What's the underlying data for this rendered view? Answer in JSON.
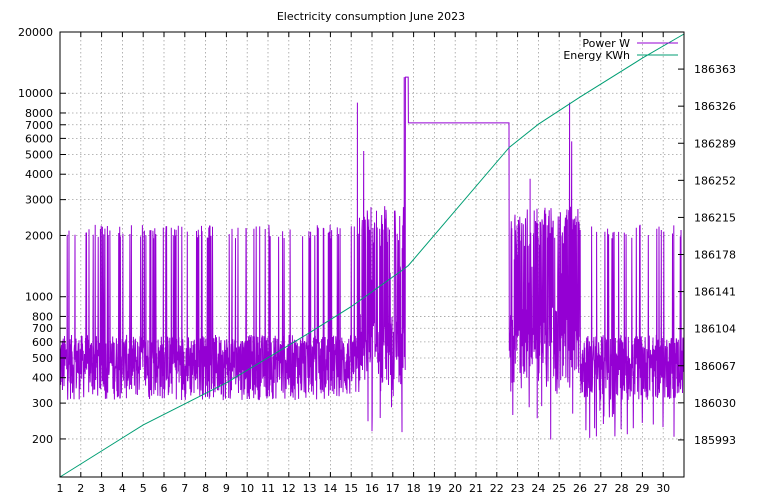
{
  "chart_data": {
    "type": "line",
    "title": "Electricity consumption June 2023",
    "xlabel": "",
    "ylabel_left": "",
    "ylabel_right": "",
    "x_range": [
      1,
      31
    ],
    "x_ticks": [
      "1",
      "2",
      "3",
      "4",
      "5",
      "6",
      "7",
      "8",
      "9",
      "10",
      "11",
      "12",
      "13",
      "14",
      "15",
      "16",
      "17",
      "18",
      "19",
      "20",
      "21",
      "22",
      "23",
      "24",
      "25",
      "26",
      "27",
      "28",
      "29",
      "30"
    ],
    "y_left": {
      "scale": "log",
      "range": [
        130,
        20000
      ],
      "ticks": [
        200,
        300,
        400,
        500,
        600,
        700,
        800,
        1000,
        2000,
        3000,
        4000,
        5000,
        6000,
        7000,
        8000,
        10000,
        20000
      ],
      "tick_labels": [
        "200",
        "300",
        "400",
        "500",
        "600",
        "700",
        "800",
        "1000",
        "2000",
        "3000",
        "4000",
        "5000",
        "6000",
        "7000",
        "8000",
        "10000",
        "20000"
      ]
    },
    "y_right": {
      "scale": "linear",
      "range": [
        185956,
        186400
      ],
      "ticks": [
        185993,
        186030,
        186067,
        186104,
        186141,
        186178,
        186215,
        186252,
        186289,
        186326,
        186363
      ],
      "tick_labels": [
        "185993",
        "186030",
        "186067",
        "186104",
        "186141",
        "186178",
        "186215",
        "186252",
        "186289",
        "186326",
        "186363"
      ]
    },
    "grid": true,
    "legend_position": "top-right",
    "series": [
      {
        "name": "Power W",
        "axis": "left",
        "color": "#9400d3",
        "baseline_low": 310,
        "baseline_high": 650,
        "spike_level": 2150,
        "segments": [
          {
            "from": 1.0,
            "to": 15.4,
            "regime": "normal"
          },
          {
            "from": 15.4,
            "to": 17.6,
            "regime": "high"
          },
          {
            "from": 17.6,
            "to": 17.75,
            "value": 12000
          },
          {
            "from": 17.75,
            "to": 22.6,
            "value": 7150
          },
          {
            "from": 22.6,
            "to": 26.0,
            "regime": "high"
          },
          {
            "from": 26.0,
            "to": 31.0,
            "regime": "normal_wide"
          }
        ],
        "peaks": [
          {
            "x": 15.3,
            "y": 9000
          },
          {
            "x": 15.6,
            "y": 5200
          },
          {
            "x": 17.55,
            "y": 12000
          },
          {
            "x": 17.7,
            "y": 12000
          },
          {
            "x": 23.6,
            "y": 3800
          },
          {
            "x": 25.5,
            "y": 9000
          },
          {
            "x": 25.6,
            "y": 5800
          }
        ],
        "min_value": 195
      },
      {
        "name": "Energy KWh",
        "axis": "right",
        "color": "#009e73",
        "points": [
          {
            "x": 1,
            "y": 185956
          },
          {
            "x": 5,
            "y": 186008
          },
          {
            "x": 9,
            "y": 186050
          },
          {
            "x": 13,
            "y": 186100
          },
          {
            "x": 15,
            "y": 186126
          },
          {
            "x": 17.5,
            "y": 186163
          },
          {
            "x": 17.75,
            "y": 186167
          },
          {
            "x": 22.6,
            "y": 186285
          },
          {
            "x": 24,
            "y": 186308
          },
          {
            "x": 26,
            "y": 186335
          },
          {
            "x": 29,
            "y": 186374
          },
          {
            "x": 31,
            "y": 186398
          }
        ]
      }
    ]
  }
}
